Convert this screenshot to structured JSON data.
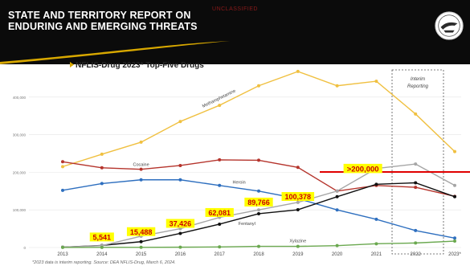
{
  "header": {
    "title_line1": "STATE AND TERRITORY REPORT ON",
    "title_line2": "ENDURING AND EMERGING THREATS",
    "classification": "UNCLASSIFIED"
  },
  "footnote": "*2023 data is interim reporting. Source: DEA NFLIS-Drug, March 6, 2024.",
  "colors": {
    "header_bg": "#0b0b0b",
    "accent_gold": "#d8a800",
    "callout_yellow": "#ffff00",
    "callout_text": "#cc0000",
    "marker_red": "#e00000"
  },
  "icons": {
    "seal": "dea-seal-icon",
    "title_marker": "gold-chevron-icon"
  },
  "chart_data": {
    "type": "line",
    "title": "NFLIS-Drug 2023* Top-Five Drugs",
    "categories": [
      "2013",
      "2014",
      "2015",
      "2016",
      "2017",
      "2018",
      "2019",
      "2020",
      "2021",
      "2022",
      "2023*"
    ],
    "ylim": [
      0,
      470000
    ],
    "yticks": [
      0,
      100000,
      200000,
      300000,
      400000
    ],
    "ytick_labels": [
      "0",
      "100,000",
      "200,000",
      "300,000",
      "400,000"
    ],
    "grid": true,
    "series": [
      {
        "name": "Methamphetamine",
        "color": "#f0c040",
        "values": [
          215000,
          248000,
          280000,
          335000,
          378000,
          430000,
          468000,
          430000,
          442000,
          355000,
          255000
        ]
      },
      {
        "name": "Cocaine",
        "color": "#b5342c",
        "values": [
          228000,
          212000,
          208000,
          218000,
          233000,
          232000,
          213000,
          150000,
          165000,
          160000,
          136000
        ]
      },
      {
        "name": "Heroin",
        "color": "#2e6fbf",
        "values": [
          152000,
          170000,
          180000,
          180000,
          165000,
          150000,
          130000,
          100000,
          75000,
          45000,
          25000
        ]
      },
      {
        "name": "Fentanyl",
        "color": "#111111",
        "values": [
          1000,
          5541,
          15488,
          37426,
          62081,
          89766,
          100378,
          135000,
          168000,
          172000,
          135000
        ]
      },
      {
        "name": "Fentanyl Related Compounds",
        "color": "#a6a6a6",
        "values": [
          1000,
          5000,
          30000,
          50000,
          80000,
          100000,
          120000,
          150000,
          210000,
          222000,
          165000
        ]
      },
      {
        "name": "Xylazine",
        "color": "#6aa84f",
        "values": [
          200,
          300,
          500,
          800,
          1500,
          3000,
          3000,
          5000,
          10000,
          12000,
          17000
        ]
      }
    ],
    "annotations": [
      {
        "text": "Interim Reporting"
      },
      {
        "text": "5,541",
        "year": "2014",
        "value": 5541
      },
      {
        "text": "15,488",
        "year": "2015",
        "value": 15488
      },
      {
        "text": "37,426",
        "year": "2016",
        "value": 37426
      },
      {
        "text": "62,081",
        "year": "2017",
        "value": 62081
      },
      {
        "text": "89,766",
        "year": "2018",
        "value": 89766
      },
      {
        "text": "100,378",
        "year": "2019",
        "value": 100378
      },
      {
        "text": ">200,000",
        "year": "2020",
        "value": 200000
      }
    ]
  }
}
